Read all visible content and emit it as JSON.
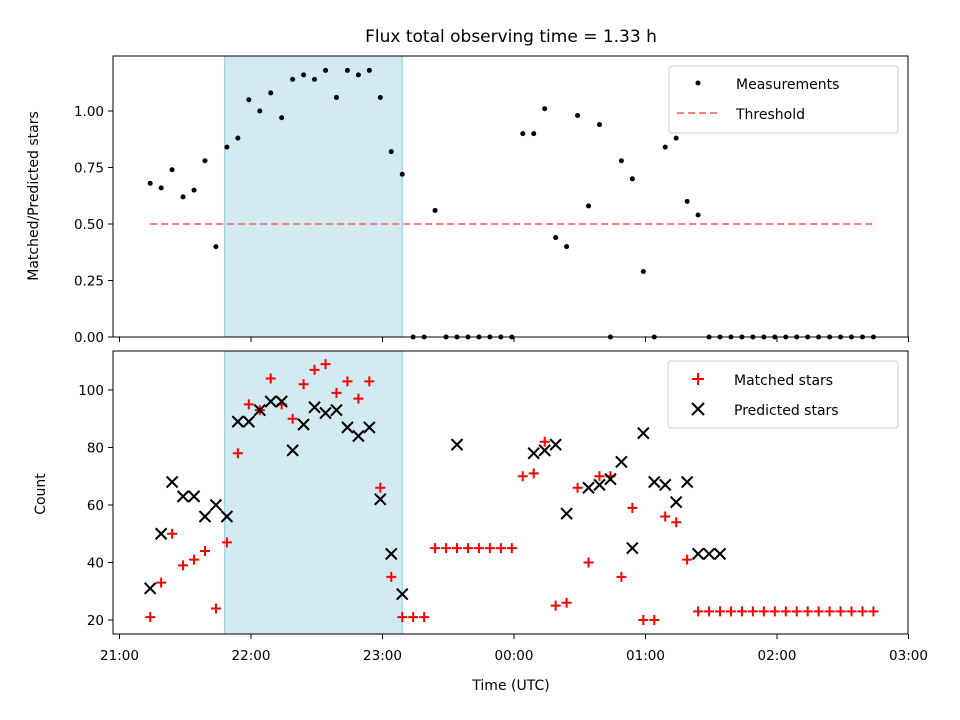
{
  "chart_data": [
    {
      "type": "scatter",
      "title": "Flux total observing time = 1.33 h",
      "xlabel": "",
      "ylabel": "Matched/Predicted stars",
      "xlim": [
        "21:00",
        "03:00"
      ],
      "ylim": [
        0,
        1.26
      ],
      "yticks": [
        0.0,
        0.25,
        0.5,
        0.75,
        1.0
      ],
      "ytick_labels": [
        "0.00",
        "0.25",
        "0.50",
        "0.75",
        "1.00"
      ],
      "legend": {
        "placement": "top-right"
      },
      "shaded_span": {
        "start": "21:48",
        "end": "23:09",
        "color": "#add8e6"
      },
      "series": [
        {
          "name": "Measurements",
          "marker": "dot",
          "color": "#000000",
          "x": [
            "21:14",
            "21:19",
            "21:24",
            "21:29",
            "21:34",
            "21:39",
            "21:44",
            "21:49",
            "21:54",
            "21:59",
            "22:04",
            "22:09",
            "22:14",
            "22:19",
            "22:24",
            "22:29",
            "22:34",
            "22:39",
            "22:44",
            "22:49",
            "22:54",
            "22:59",
            "23:04",
            "23:09",
            "23:14",
            "23:19",
            "23:24",
            "23:29",
            "23:34",
            "23:39",
            "23:44",
            "23:49",
            "23:54",
            "23:59",
            "00:04",
            "00:09",
            "00:14",
            "00:19",
            "00:24",
            "00:29",
            "00:34",
            "00:39",
            "00:44",
            "00:49",
            "00:54",
            "00:59",
            "01:04",
            "01:09",
            "01:14",
            "01:19",
            "01:24",
            "01:29",
            "01:34",
            "01:39",
            "01:44",
            "01:49",
            "01:54",
            "01:59",
            "02:04",
            "02:09",
            "02:14",
            "02:19",
            "02:24",
            "02:29",
            "02:34",
            "02:39",
            "02:44"
          ],
          "y": [
            0.68,
            0.66,
            0.74,
            0.62,
            0.65,
            0.78,
            0.4,
            0.84,
            0.88,
            1.05,
            1.0,
            1.08,
            0.97,
            1.14,
            1.16,
            1.14,
            1.18,
            1.06,
            1.18,
            1.16,
            1.18,
            1.06,
            0.82,
            0.72,
            0.0,
            0.0,
            0.56,
            0.0,
            0.0,
            0.0,
            0.0,
            0.0,
            0.0,
            0.0,
            0.9,
            0.9,
            1.01,
            0.44,
            0.4,
            0.98,
            0.58,
            0.94,
            0.0,
            0.78,
            0.7,
            0.29,
            0.0,
            0.84,
            0.88,
            0.6,
            0.54,
            0.0,
            0.0,
            0.0,
            0.0,
            0.0,
            0.0,
            0.0,
            0.0,
            0.0,
            0.0,
            0.0,
            0.0,
            0.0,
            0.0,
            0.0,
            0.0
          ]
        },
        {
          "name": "Threshold",
          "style": "dashed",
          "color": "#ff7f7f",
          "x": [
            "21:14",
            "02:44"
          ],
          "y": [
            0.5,
            0.5
          ]
        }
      ]
    },
    {
      "type": "scatter",
      "title": "",
      "xlabel": "Time (UTC)",
      "ylabel": "Count",
      "xlim": [
        "21:00",
        "03:00"
      ],
      "xtick_labels": [
        "21:00",
        "22:00",
        "23:00",
        "00:00",
        "01:00",
        "02:00",
        "03:00"
      ],
      "ylim": [
        15,
        112
      ],
      "yticks": [
        20,
        40,
        60,
        80,
        100
      ],
      "legend": {
        "placement": "top-right"
      },
      "shaded_span": {
        "start": "21:48",
        "end": "23:09",
        "color": "#add8e6"
      },
      "series": [
        {
          "name": "Matched stars",
          "marker": "plus",
          "color": "#ff0000",
          "x": [
            "21:14",
            "21:19",
            "21:24",
            "21:29",
            "21:34",
            "21:39",
            "21:44",
            "21:49",
            "21:54",
            "21:59",
            "22:04",
            "22:09",
            "22:14",
            "22:19",
            "22:24",
            "22:29",
            "22:34",
            "22:39",
            "22:44",
            "22:49",
            "22:54",
            "22:59",
            "23:04",
            "23:09",
            "23:14",
            "23:19",
            "23:24",
            "23:29",
            "23:34",
            "23:39",
            "23:44",
            "23:49",
            "23:54",
            "23:59",
            "00:04",
            "00:09",
            "00:14",
            "00:19",
            "00:24",
            "00:29",
            "00:34",
            "00:39",
            "00:44",
            "00:49",
            "00:54",
            "00:59",
            "01:04",
            "01:09",
            "01:14",
            "01:19",
            "01:24",
            "01:29",
            "01:34",
            "01:39",
            "01:44",
            "01:49",
            "01:54",
            "01:59",
            "02:04",
            "02:09",
            "02:14",
            "02:19",
            "02:24",
            "02:29",
            "02:34",
            "02:39",
            "02:44"
          ],
          "y": [
            21,
            33,
            50,
            39,
            41,
            44,
            24,
            47,
            78,
            95,
            93,
            104,
            95,
            90,
            102,
            107,
            109,
            99,
            103,
            97,
            103,
            66,
            35,
            21,
            21,
            21,
            45,
            45,
            45,
            45,
            45,
            45,
            45,
            45,
            70,
            71,
            82,
            25,
            26,
            66,
            40,
            70,
            70,
            35,
            59,
            20,
            20,
            56,
            54,
            41,
            23,
            23,
            23,
            23,
            23,
            23,
            23,
            23,
            23,
            23,
            23,
            23,
            23,
            23,
            23,
            23,
            23
          ]
        },
        {
          "name": "Predicted stars",
          "marker": "x",
          "color": "#000000",
          "x": [
            "21:14",
            "21:19",
            "21:24",
            "21:29",
            "21:34",
            "21:39",
            "21:44",
            "21:49",
            "21:54",
            "21:59",
            "22:04",
            "22:09",
            "22:14",
            "22:19",
            "22:24",
            "22:29",
            "22:34",
            "22:39",
            "22:44",
            "22:49",
            "22:54",
            "22:59",
            "23:04",
            "23:09",
            "23:34",
            "00:09",
            "00:14",
            "00:19",
            "00:24",
            "00:34",
            "00:39",
            "00:44",
            "00:49",
            "00:54",
            "00:59",
            "01:04",
            "01:09",
            "01:14",
            "01:19",
            "01:24",
            "01:29",
            "01:34"
          ],
          "y": [
            31,
            50,
            68,
            63,
            63,
            56,
            60,
            56,
            89,
            89,
            93,
            96,
            96,
            79,
            88,
            94,
            92,
            93,
            87,
            84,
            87,
            62,
            43,
            29,
            81,
            78,
            79,
            81,
            57,
            66,
            67,
            69,
            75,
            45,
            85,
            68,
            67,
            61,
            68,
            43,
            43,
            43
          ]
        }
      ]
    }
  ]
}
